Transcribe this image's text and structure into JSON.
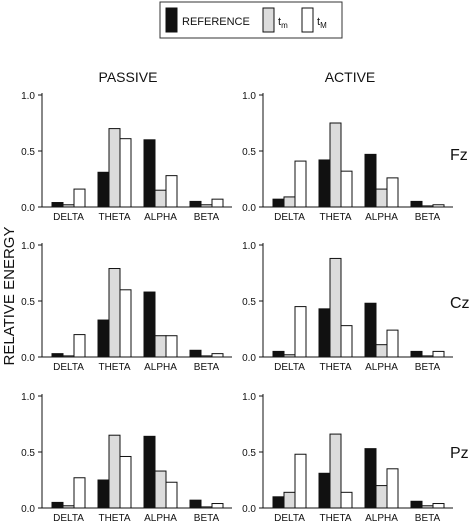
{
  "legend": {
    "items": [
      {
        "label": "REFERENCE",
        "sub": "",
        "fill": "#111111"
      },
      {
        "label": "t",
        "sub": "m",
        "fill": "#dcdcdc"
      },
      {
        "label": "t",
        "sub": "M",
        "fill": "#ffffff"
      }
    ]
  },
  "column_headers": [
    "PASSIVE",
    "ACTIVE"
  ],
  "row_labels": [
    "Fz",
    "Cz",
    "Pz"
  ],
  "ylabel": "RELATIVE ENERGY",
  "colors": {
    "reference": "#111111",
    "tm": "#dcdcdc",
    "tM": "#ffffff",
    "stroke": "#111111"
  },
  "chart_data": [
    {
      "type": "bar",
      "row": "Fz",
      "condition": "PASSIVE",
      "categories": [
        "DELTA",
        "THETA",
        "ALPHA",
        "BETA"
      ],
      "ylim": [
        0,
        1.0
      ],
      "yticks": [
        "0.0",
        "0.5",
        "1.0"
      ],
      "series": [
        {
          "name": "REFERENCE",
          "values": [
            0.04,
            0.31,
            0.6,
            0.05
          ]
        },
        {
          "name": "tm",
          "values": [
            0.02,
            0.7,
            0.15,
            0.02
          ]
        },
        {
          "name": "tM",
          "values": [
            0.16,
            0.61,
            0.28,
            0.07
          ]
        }
      ]
    },
    {
      "type": "bar",
      "row": "Fz",
      "condition": "ACTIVE",
      "categories": [
        "DELTA",
        "THETA",
        "ALPHA",
        "BETA"
      ],
      "ylim": [
        0,
        1.0
      ],
      "yticks": [
        "0.0",
        "0.5",
        "1.0"
      ],
      "series": [
        {
          "name": "REFERENCE",
          "values": [
            0.07,
            0.42,
            0.47,
            0.05
          ]
        },
        {
          "name": "tm",
          "values": [
            0.09,
            0.75,
            0.16,
            0.01
          ]
        },
        {
          "name": "tM",
          "values": [
            0.41,
            0.32,
            0.26,
            0.02
          ]
        }
      ]
    },
    {
      "type": "bar",
      "row": "Cz",
      "condition": "PASSIVE",
      "categories": [
        "DELTA",
        "THETA",
        "ALPHA",
        "BETA"
      ],
      "ylim": [
        0,
        1.0
      ],
      "yticks": [
        "0.0",
        "0.5",
        "1.0"
      ],
      "series": [
        {
          "name": "REFERENCE",
          "values": [
            0.03,
            0.33,
            0.58,
            0.06
          ]
        },
        {
          "name": "tm",
          "values": [
            0.01,
            0.79,
            0.19,
            0.01
          ]
        },
        {
          "name": "tM",
          "values": [
            0.2,
            0.6,
            0.19,
            0.03
          ]
        }
      ]
    },
    {
      "type": "bar",
      "row": "Cz",
      "condition": "ACTIVE",
      "categories": [
        "DELTA",
        "THETA",
        "ALPHA",
        "BETA"
      ],
      "ylim": [
        0,
        1.0
      ],
      "yticks": [
        "0.0",
        "0.5",
        "1.0"
      ],
      "series": [
        {
          "name": "REFERENCE",
          "values": [
            0.05,
            0.43,
            0.48,
            0.05
          ]
        },
        {
          "name": "tm",
          "values": [
            0.02,
            0.88,
            0.11,
            0.01
          ]
        },
        {
          "name": "tM",
          "values": [
            0.45,
            0.28,
            0.24,
            0.05
          ]
        }
      ]
    },
    {
      "type": "bar",
      "row": "Pz",
      "condition": "PASSIVE",
      "categories": [
        "DELTA",
        "THETA",
        "ALPHA",
        "BETA"
      ],
      "ylim": [
        0,
        1.0
      ],
      "yticks": [
        "0.0",
        "0.5",
        "1.0"
      ],
      "series": [
        {
          "name": "REFERENCE",
          "values": [
            0.05,
            0.25,
            0.64,
            0.07
          ]
        },
        {
          "name": "tm",
          "values": [
            0.02,
            0.65,
            0.33,
            0.01
          ]
        },
        {
          "name": "tM",
          "values": [
            0.27,
            0.46,
            0.23,
            0.04
          ]
        }
      ]
    },
    {
      "type": "bar",
      "row": "Pz",
      "condition": "ACTIVE",
      "categories": [
        "DELTA",
        "THETA",
        "ALPHA",
        "BETA"
      ],
      "ylim": [
        0,
        1.0
      ],
      "yticks": [
        "0.0",
        "0.5",
        "1.0"
      ],
      "series": [
        {
          "name": "REFERENCE",
          "values": [
            0.1,
            0.31,
            0.53,
            0.06
          ]
        },
        {
          "name": "tm",
          "values": [
            0.14,
            0.66,
            0.2,
            0.02
          ]
        },
        {
          "name": "tM",
          "values": [
            0.48,
            0.14,
            0.35,
            0.04
          ]
        }
      ]
    }
  ]
}
